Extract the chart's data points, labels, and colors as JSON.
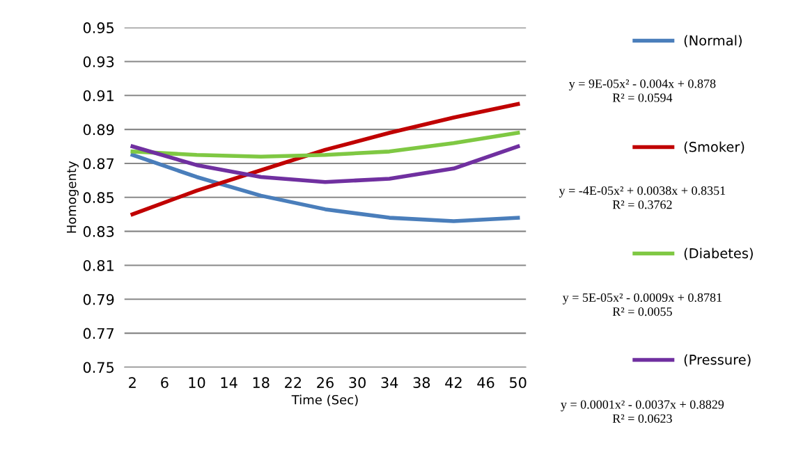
{
  "chart_data": {
    "type": "line",
    "xlabel": "Time (Sec)",
    "ylabel": "Homogenty",
    "x": [
      2,
      10,
      18,
      26,
      34,
      42,
      50
    ],
    "series": [
      {
        "name": "(Normal)",
        "color": "#4a7ebb",
        "values": [
          0.875,
          0.862,
          0.851,
          0.843,
          0.838,
          0.836,
          0.838
        ]
      },
      {
        "name": "(Smoker)",
        "color": "#c00000",
        "values": [
          0.84,
          0.854,
          0.866,
          0.878,
          0.888,
          0.897,
          0.905
        ]
      },
      {
        "name": "(Diabetes)",
        "color": "#7fc843",
        "values": [
          0.877,
          0.875,
          0.874,
          0.875,
          0.877,
          0.882,
          0.888
        ]
      },
      {
        "name": "(Pressure)",
        "color": "#7030a0",
        "values": [
          0.88,
          0.869,
          0.862,
          0.859,
          0.861,
          0.867,
          0.88
        ]
      }
    ],
    "xlim": [
      1,
      51
    ],
    "xticks": [
      2,
      6,
      10,
      14,
      18,
      22,
      26,
      30,
      34,
      38,
      42,
      46,
      50
    ],
    "ylim": [
      0.75,
      0.95
    ],
    "yticks": [
      {
        "value": 0.75,
        "label": "0.75"
      },
      {
        "value": 0.77,
        "label": "0.77"
      },
      {
        "value": 0.79,
        "label": "0.79"
      },
      {
        "value": 0.81,
        "label": "0.81"
      },
      {
        "value": 0.83,
        "label": "0.83"
      },
      {
        "value": 0.85,
        "label": "0.85"
      },
      {
        "value": 0.87,
        "label": "0.87"
      },
      {
        "value": 0.89,
        "label": "0.89"
      },
      {
        "value": 0.91,
        "label": "0.91"
      },
      {
        "value": 0.93,
        "label": "0.93"
      },
      {
        "value": 0.95,
        "label": "0.95"
      }
    ],
    "grid": "y",
    "legend": "right",
    "marker": "none",
    "line_style": "solid",
    "annotations": [
      "y = 9E-05x² - 0.004x + 0.878\nR² = 0.0594",
      "y = -4E-05x² + 0.0038x + 0.8351\nR² = 0.3762",
      "y = 5E-05x² - 0.0009x + 0.8781\nR² = 0.0055",
      "y = 0.0001x² - 0.0037x + 0.8829\nR² = 0.0623"
    ]
  }
}
